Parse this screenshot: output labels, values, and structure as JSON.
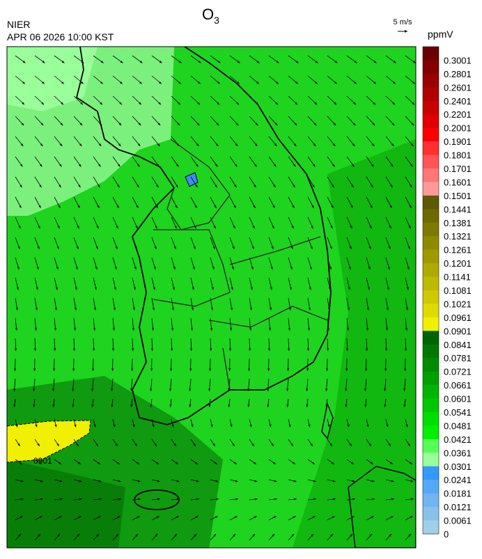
{
  "header": {
    "title": {
      "base": "O",
      "subscript": "3"
    },
    "agency": "NIER",
    "timestamp": "APR 06 2026 10:00 KST"
  },
  "wind_legend": {
    "label": "5 m/s"
  },
  "colorbar": {
    "unit": "ppmV",
    "bins": [
      {
        "color": "#6b0000",
        "label": "0.3001"
      },
      {
        "color": "#820000",
        "label": "0.2801"
      },
      {
        "color": "#990000",
        "label": "0.2601"
      },
      {
        "color": "#b00000",
        "label": "0.2401"
      },
      {
        "color": "#c80000",
        "label": "0.2201"
      },
      {
        "color": "#e00000",
        "label": "0.2001"
      },
      {
        "color": "#ff0000",
        "label": "0.1901"
      },
      {
        "color": "#ff3030",
        "label": "0.1801"
      },
      {
        "color": "#ff5555",
        "label": "0.1701"
      },
      {
        "color": "#ff7777",
        "label": "0.1601"
      },
      {
        "color": "#ff9999",
        "label": "0.1501"
      },
      {
        "color": "#5e5a00",
        "label": "0.1441"
      },
      {
        "color": "#6e6a00",
        "label": "0.1381"
      },
      {
        "color": "#7e7a00",
        "label": "0.1321"
      },
      {
        "color": "#8e8a00",
        "label": "0.1261"
      },
      {
        "color": "#9e9a00",
        "label": "0.1201"
      },
      {
        "color": "#aeaa00",
        "label": "0.1141"
      },
      {
        "color": "#beba00",
        "label": "0.1081"
      },
      {
        "color": "#cec900",
        "label": "0.1021"
      },
      {
        "color": "#dedb00",
        "label": "0.0961"
      },
      {
        "color": "#f0f000",
        "label": "0.0901"
      },
      {
        "color": "#006400",
        "label": "0.0841"
      },
      {
        "color": "#007800",
        "label": "0.0781"
      },
      {
        "color": "#008c00",
        "label": "0.0721"
      },
      {
        "color": "#00a000",
        "label": "0.0661"
      },
      {
        "color": "#00b400",
        "label": "0.0601"
      },
      {
        "color": "#00c800",
        "label": "0.0541"
      },
      {
        "color": "#00dc00",
        "label": "0.0481"
      },
      {
        "color": "#00f000",
        "label": "0.0421"
      },
      {
        "color": "#55ff55",
        "label": "0.0361"
      },
      {
        "color": "#99ff99",
        "label": "0.0301"
      },
      {
        "color": "#3399ff",
        "label": "0.0241"
      },
      {
        "color": "#55a8f5",
        "label": "0.0181"
      },
      {
        "color": "#70b5f0",
        "label": "0.0121"
      },
      {
        "color": "#88c2ec",
        "label": "0.0061"
      },
      {
        "color": "#a0cfe8",
        "label": "0"
      }
    ]
  },
  "contour": {
    "label": "0901"
  }
}
